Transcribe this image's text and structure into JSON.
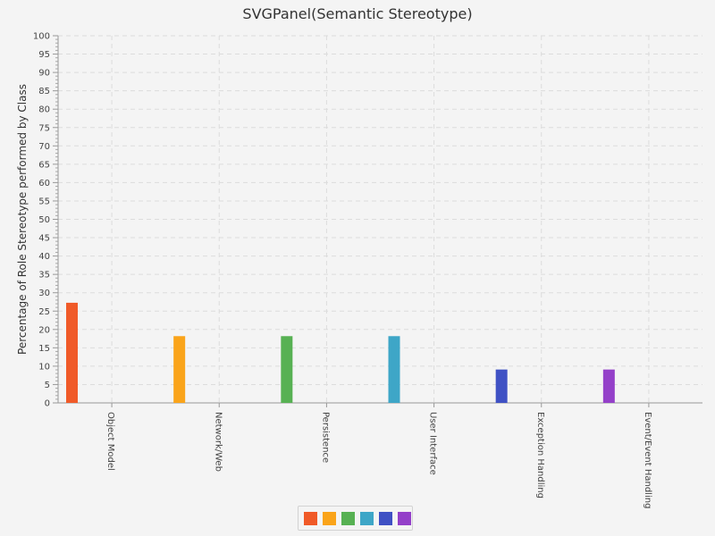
{
  "chart_data": {
    "type": "bar",
    "title": "SVGPanel(Semantic Stereotype)",
    "xlabel": "",
    "ylabel": "Percentage of Role Stereotype performed by Class",
    "ylim": [
      0,
      100
    ],
    "ytick_step": 5,
    "grid": true,
    "legend_placement": "bottom-center",
    "categories": [
      "Object Model",
      "Network/Web",
      "Persistence",
      "User Interface",
      "Exception Handling",
      "Event/Event Handling"
    ],
    "values": [
      27.27,
      18.18,
      18.18,
      18.18,
      9.09,
      9.09
    ],
    "colors": [
      "#f05a28",
      "#faa41a",
      "#57b153",
      "#3ea6c7",
      "#3f51c4",
      "#9440c9"
    ]
  }
}
